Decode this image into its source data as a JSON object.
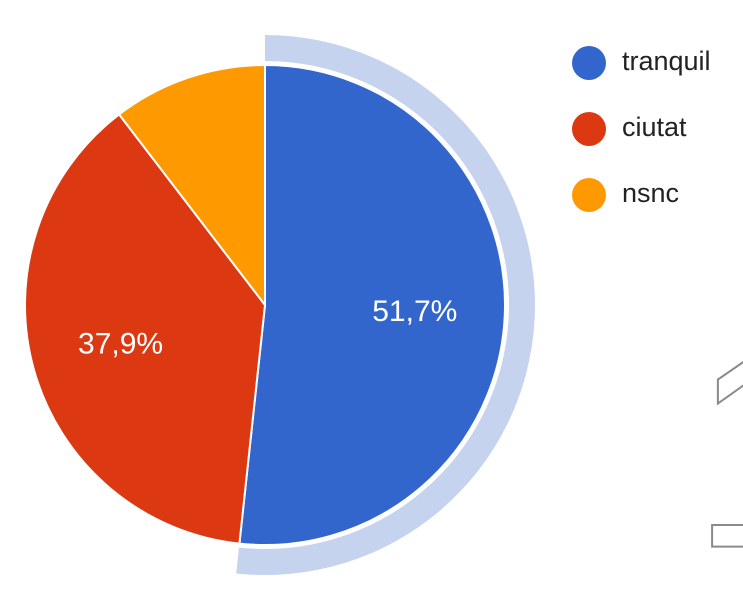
{
  "chart_data": {
    "type": "pie",
    "categories": [
      "tranquil",
      "ciutat",
      "nsnc"
    ],
    "values": [
      51.7,
      37.9,
      10.4
    ],
    "value_labels": [
      "51,7%",
      "37,9%",
      null
    ],
    "colors": [
      "#3366cc",
      "#dc3912",
      "#ff9900"
    ],
    "highlight": 0,
    "legend": "right",
    "annotation": "1"
  }
}
